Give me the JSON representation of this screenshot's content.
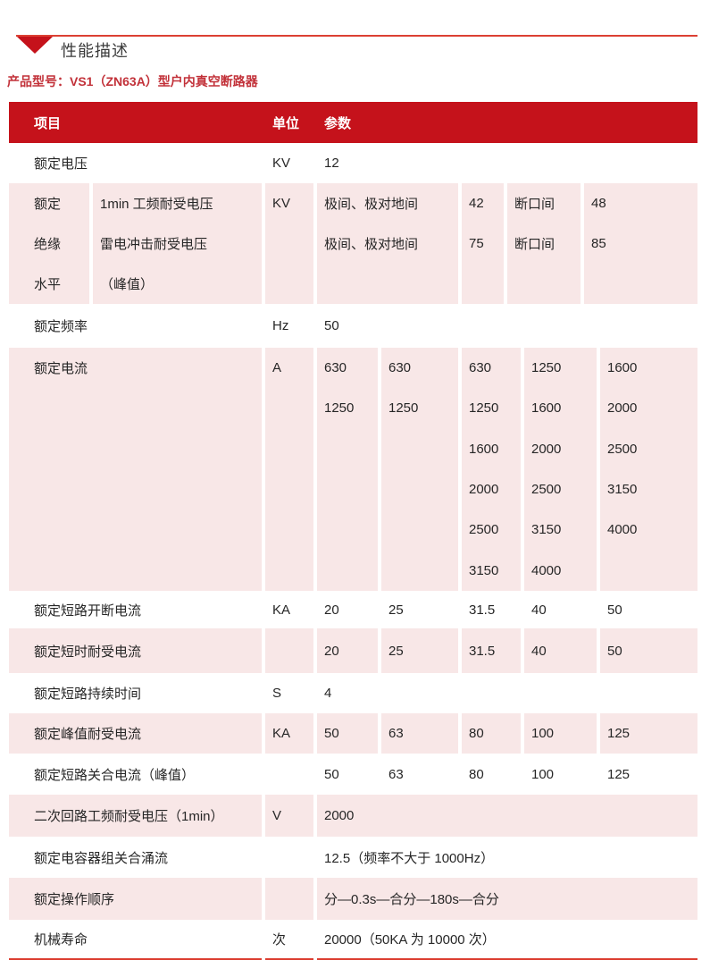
{
  "page": {
    "section_title": "性能描述",
    "product_model": "产品型号：VS1（ZN63A）型户内真空断路器"
  },
  "colors": {
    "header_red": "#c5121b",
    "row_pink": "#f8e7e7",
    "accent_line": "#dc4033",
    "model_red": "#c23139",
    "body_text": "#262626"
  },
  "table": {
    "columns": {
      "item": "项目",
      "unit": "单位",
      "param": "参数"
    },
    "rows": [
      {
        "name": "rated-voltage",
        "item": "额定电压",
        "unit": "KV",
        "columns": [
          [
            "12"
          ]
        ]
      },
      {
        "name": "insulation-level",
        "item_group": [
          "额定",
          "绝缘",
          "水平"
        ],
        "item_desc": [
          "1min 工频耐受电压",
          "雷电冲击耐受电压",
          "（峰值）"
        ],
        "unit": "KV",
        "columns": [
          [
            "极间、极对地间",
            "极间、极对地间"
          ],
          [
            "42",
            "75"
          ],
          [
            "断口间",
            "断口间"
          ],
          [
            "48",
            "85"
          ]
        ]
      },
      {
        "name": "rated-frequency",
        "item": "额定频率",
        "unit": "Hz",
        "columns": [
          [
            "50"
          ]
        ]
      },
      {
        "name": "rated-current",
        "item": "额定电流",
        "unit": "A",
        "columns": [
          [
            "630",
            "1250"
          ],
          [
            "630",
            "1250"
          ],
          [
            "630",
            "1250",
            "1600",
            "2000",
            "2500",
            "3150"
          ],
          [
            "1250",
            "1600",
            "2000",
            "2500",
            "3150",
            "4000"
          ],
          [
            "1600",
            "2000",
            "2500",
            "3150",
            "4000"
          ]
        ]
      },
      {
        "name": "rated-short-circuit-breaking-current",
        "item": "额定短路开断电流",
        "unit": "KA",
        "columns": [
          [
            "20"
          ],
          [
            "25"
          ],
          [
            "31.5"
          ],
          [
            "40"
          ],
          [
            "50"
          ]
        ]
      },
      {
        "name": "rated-short-time-withstand-current",
        "item": "额定短时耐受电流",
        "unit": "",
        "columns": [
          [
            "20"
          ],
          [
            "25"
          ],
          [
            "31.5"
          ],
          [
            "40"
          ],
          [
            "50"
          ]
        ]
      },
      {
        "name": "rated-short-circuit-duration",
        "item": "额定短路持续时间",
        "unit": "S",
        "columns": [
          [
            "4"
          ]
        ]
      },
      {
        "name": "rated-peak-withstand-current",
        "item": "额定峰值耐受电流",
        "unit": "KA",
        "columns": [
          [
            "50"
          ],
          [
            "63"
          ],
          [
            "80"
          ],
          [
            "100"
          ],
          [
            "125"
          ]
        ]
      },
      {
        "name": "rated-short-circuit-making-current",
        "item": "额定短路关合电流（峰值）",
        "unit": "",
        "columns": [
          [
            "50"
          ],
          [
            "63"
          ],
          [
            "80"
          ],
          [
            "100"
          ],
          [
            "125"
          ]
        ]
      },
      {
        "name": "secondary-circuit-power-frequency-withstand-voltage",
        "item": "二次回路工频耐受电压（1min）",
        "unit": "V",
        "columns": [
          [
            "2000"
          ]
        ]
      },
      {
        "name": "rated-capacitor-bank-making-inrush-current",
        "item": "额定电容器组关合涌流",
        "unit": "",
        "columns": [
          [
            "12.5（频率不大于 1000Hz）"
          ]
        ]
      },
      {
        "name": "rated-operating-sequence",
        "item": "额定操作顺序",
        "unit": "",
        "columns": [
          [
            "分—0.3s—合分—180s—合分"
          ]
        ]
      },
      {
        "name": "mechanical-life",
        "item": "机械寿命",
        "unit": "次",
        "columns": [
          [
            "20000（50KA 为 10000 次）"
          ]
        ]
      }
    ]
  }
}
